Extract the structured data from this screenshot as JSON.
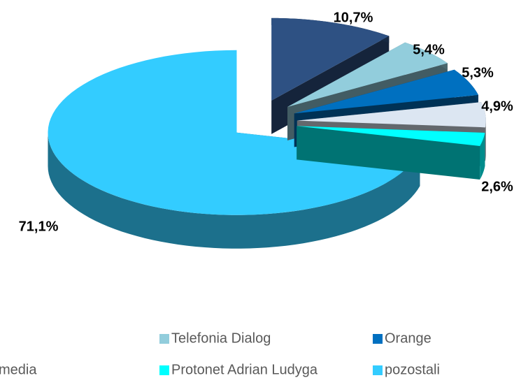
{
  "chart_data": {
    "type": "pie3d",
    "categories": [
      null,
      "Telefonia Dialog",
      "Orange",
      "media",
      "Protonet Adrian Ludyga",
      "pozostali"
    ],
    "values": [
      10.7,
      5.4,
      5.3,
      4.9,
      2.6,
      71.1
    ],
    "value_labels": [
      "10,7%",
      "5,4%",
      "5,3%",
      "4,9%",
      "2,6%",
      "71,1%"
    ],
    "colors": [
      "#2e5183",
      "#92cddc",
      "#0070c0",
      "#dce6f2",
      "#00ffff",
      "#33ccff"
    ],
    "legend": "bottom"
  }
}
